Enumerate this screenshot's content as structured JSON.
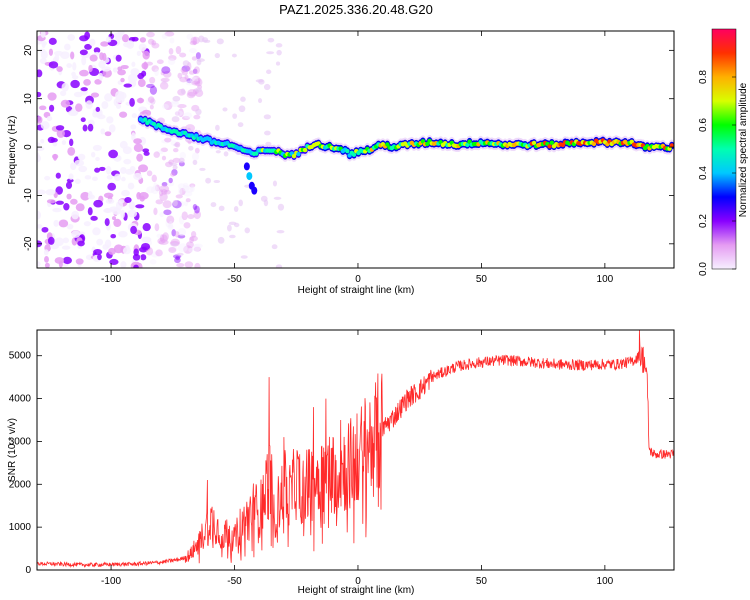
{
  "figure": {
    "title": "PAZ1.2025.336.20.48.G20"
  },
  "chart_data": [
    {
      "type": "heatmap",
      "xlabel": "Height of straight line (km)",
      "ylabel": "Frequency (Hz)",
      "xlim": [
        -130,
        128
      ],
      "ylim": [
        -25,
        24
      ],
      "xticks": [
        -100,
        -50,
        0,
        50,
        100
      ],
      "yticks": [
        -20,
        -10,
        0,
        10,
        20
      ],
      "colorbar": {
        "label": "Normalized spectral amplitude",
        "range": [
          0.0,
          1.0
        ],
        "ticks": [
          0.0,
          0.2,
          0.4,
          0.6,
          0.8
        ],
        "colormap_stops": [
          {
            "v": 0.0,
            "color": "#f7f0ff"
          },
          {
            "v": 0.1,
            "color": "#e59cf2"
          },
          {
            "v": 0.2,
            "color": "#8800ff"
          },
          {
            "v": 0.3,
            "color": "#0000ff"
          },
          {
            "v": 0.4,
            "color": "#00c8ff"
          },
          {
            "v": 0.5,
            "color": "#00ffb0"
          },
          {
            "v": 0.6,
            "color": "#00ff00"
          },
          {
            "v": 0.7,
            "color": "#d8ff00"
          },
          {
            "v": 0.8,
            "color": "#ffb000"
          },
          {
            "v": 0.9,
            "color": "#ff3000"
          },
          {
            "v": 1.0,
            "color": "#ff0060"
          }
        ]
      },
      "noise_region_km": [
        -130,
        -70
      ],
      "signal_trace": {
        "x_km": [
          -88,
          -80,
          -72,
          -65,
          -58,
          -52,
          -47,
          -43,
          -40,
          -35,
          -30,
          -25,
          -20,
          -17,
          -12,
          -8,
          -3,
          0,
          5,
          10,
          15,
          20,
          30,
          40,
          50,
          60,
          70,
          80,
          90,
          100,
          110,
          115,
          120,
          128
        ],
        "freq_hz": [
          6,
          4,
          3,
          2,
          1,
          0.5,
          -0.5,
          -1.5,
          -1,
          -0.5,
          -1.5,
          -1.5,
          0,
          1,
          0,
          0,
          -1.5,
          -1,
          -0.5,
          0.5,
          0,
          0.5,
          1,
          0.5,
          1,
          0.5,
          0.5,
          0.5,
          1,
          1,
          1,
          0,
          0,
          0
        ],
        "branch_x_km": [
          -45,
          -44,
          -43,
          -42
        ],
        "branch_freq_hz": [
          -4,
          -6,
          -8,
          -9
        ]
      }
    },
    {
      "type": "line",
      "xlabel": "Height of straight line (km)",
      "ylabel": "SNR (10 * v/v)",
      "xlim": [
        -130,
        128
      ],
      "ylim": [
        0,
        5600
      ],
      "xticks": [
        -100,
        -50,
        0,
        50,
        100
      ],
      "yticks": [
        0,
        1000,
        2000,
        3000,
        4000,
        5000
      ],
      "series": [
        {
          "name": "SNR",
          "color": "#ff2a2a",
          "x_km": [
            -130,
            -110,
            -90,
            -80,
            -72,
            -68,
            -65,
            -62,
            -60,
            -58,
            -55,
            -52,
            -50,
            -48,
            -45,
            -42,
            -40,
            -38,
            -36,
            -35,
            -34,
            -32,
            -30,
            -28,
            -25,
            -22,
            -20,
            -15,
            -10,
            -5,
            0,
            5,
            10,
            15,
            20,
            25,
            30,
            40,
            50,
            60,
            70,
            80,
            90,
            100,
            105,
            110,
            112,
            114,
            115,
            116,
            117,
            118,
            120,
            125,
            128
          ],
          "snr": [
            150,
            120,
            140,
            180,
            250,
            350,
            600,
            900,
            1200,
            1100,
            800,
            900,
            700,
            1000,
            1200,
            1500,
            1300,
            1800,
            2200,
            1900,
            1200,
            1600,
            2000,
            1700,
            2100,
            1900,
            2000,
            2200,
            2300,
            2400,
            2600,
            3000,
            3300,
            3600,
            4000,
            4200,
            4500,
            4750,
            4850,
            4900,
            4850,
            4800,
            4780,
            4800,
            4800,
            4850,
            4900,
            5000,
            4950,
            4900,
            4500,
            2800,
            2700,
            2700,
            2700
          ],
          "spikes": [
            {
              "x_km": -61,
              "snr": 2100
            },
            {
              "x_km": -36,
              "snr": 4500
            },
            {
              "x_km": -30,
              "snr": 3100
            },
            {
              "x_km": -18,
              "snr": 3800
            },
            {
              "x_km": -13,
              "snr": 4000
            },
            {
              "x_km": -7,
              "snr": 3500
            },
            {
              "x_km": 7,
              "snr": 4000
            },
            {
              "x_km": 114,
              "snr": 5600
            }
          ]
        }
      ]
    }
  ]
}
